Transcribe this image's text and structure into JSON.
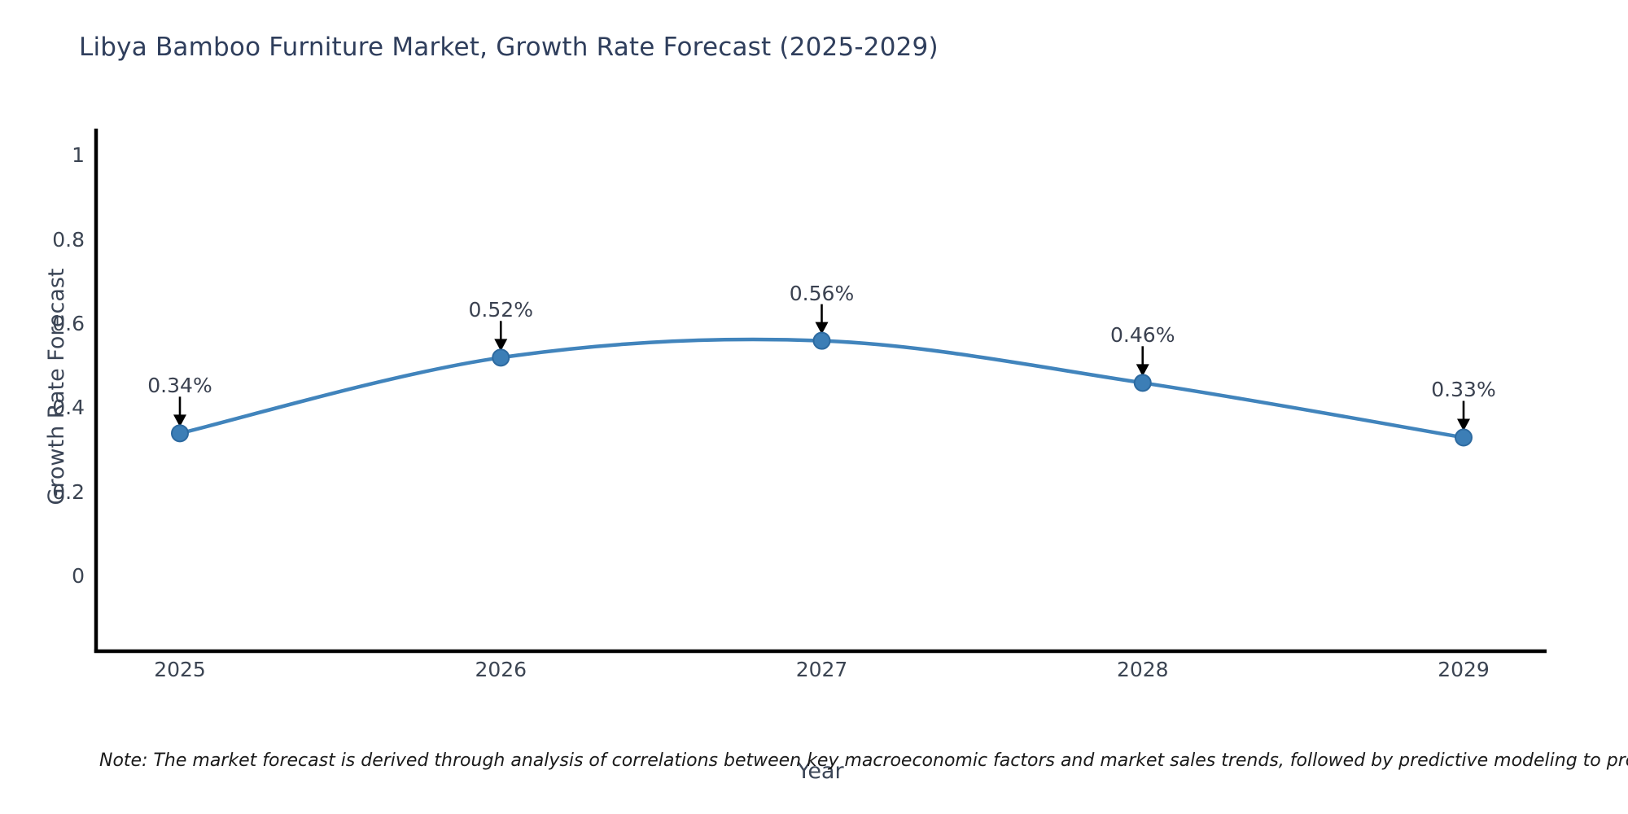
{
  "chart_data": {
    "type": "line",
    "title": "Libya Bamboo Furniture Market, Growth Rate Forecast (2025-2029)",
    "xlabel": "Year",
    "ylabel": "Growth Rate Forecast",
    "categories": [
      "2025",
      "2026",
      "2027",
      "2028",
      "2029"
    ],
    "series": [
      {
        "name": "Growth Rate Forecast",
        "values": [
          0.34,
          0.52,
          0.56,
          0.46,
          0.33
        ],
        "point_labels": [
          "0.34%",
          "0.52%",
          "0.56%",
          "0.46%",
          "0.33%"
        ]
      }
    ],
    "ytick_labels": [
      "0",
      "0.2",
      "0.4",
      "0.6",
      "0.8",
      "1"
    ],
    "ytick_values": [
      0,
      0.2,
      0.4,
      0.6,
      0.8,
      1
    ],
    "ylim": [
      -0.18,
      1.07
    ],
    "grid": false,
    "legend": "none",
    "curve": "smooth",
    "line_color": "#4184bc",
    "marker_color": "#3c7eb6",
    "marker_edge_color": "#2d6aa0",
    "arrow_color": "#000000",
    "spine_color": "#000000"
  },
  "note": "Note: The market forecast is derived through analysis of correlations between key macroeconomic factors and market sales trends, followed by predictive modeling to project future sales"
}
